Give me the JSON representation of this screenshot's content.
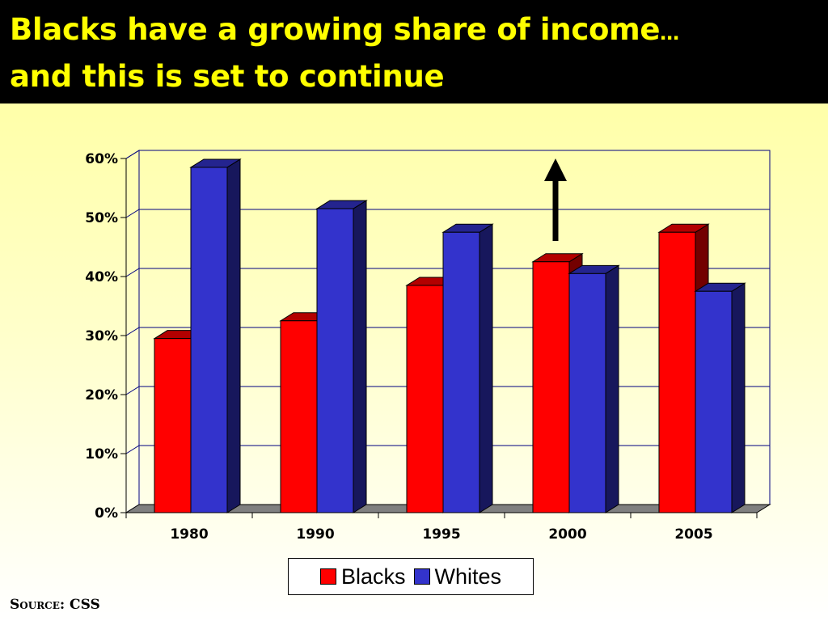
{
  "slide": {
    "title_line1": "Blacks have a growing share of income",
    "title_ellipsis": "…",
    "title_line2": "and this  is set to continue",
    "source": "Source: CSS"
  },
  "chart_data": {
    "type": "bar",
    "categories": [
      "1980",
      "1990",
      "1995",
      "2000",
      "2005"
    ],
    "series": [
      {
        "name": "Blacks",
        "values": [
          29.5,
          32.5,
          38.5,
          42.5,
          47.5
        ],
        "color": "#ff0000"
      },
      {
        "name": "Whites",
        "values": [
          58.5,
          51.5,
          47.5,
          40.5,
          37.5
        ],
        "color": "#3333cc"
      }
    ],
    "ylim": [
      0,
      60
    ],
    "yticks": [
      0,
      10,
      20,
      30,
      40,
      50,
      60
    ],
    "ytick_labels": [
      "0%",
      "10%",
      "20%",
      "30%",
      "40%",
      "50%",
      "60%"
    ],
    "grid": true,
    "legend_position": "bottom",
    "annotation": "upward-arrow"
  }
}
